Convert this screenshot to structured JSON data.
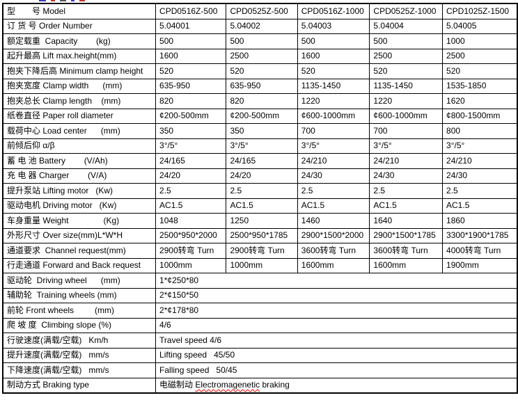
{
  "colors": {
    "border": "#000000",
    "text": "#000000",
    "spellcheck_underline": "#ff0000",
    "background": "#ffffff"
  },
  "table": {
    "rows": [
      {
        "label": "型　　号 Model",
        "values": [
          "CPD0516Z-500",
          "CPD0525Z-500",
          "CPD0516Z-1000",
          "CPD0525Z-1000",
          "CPD1025Z-1500"
        ]
      },
      {
        "label": "订 货 号 Order Number",
        "values": [
          "5.04001",
          "5.04002",
          "5.04003",
          "5.04004",
          "5.04005"
        ]
      },
      {
        "label": "额定载重  Capacity        (kg)",
        "values": [
          "500",
          "500",
          "500",
          "500",
          "1000"
        ]
      },
      {
        "label": "起升最高 Lift max.height(mm)",
        "values": [
          "1600",
          "2500",
          "1600",
          "2500",
          "2500"
        ]
      },
      {
        "label": "抱夹下降后高 Minimum clamp height",
        "values": [
          "520",
          "520",
          "520",
          "520",
          "520"
        ]
      },
      {
        "label": "抱夹宽度 Clamp width      (mm)",
        "values": [
          "635-950",
          "635-950",
          "1135-1450",
          "1135-1450",
          "1535-1850"
        ]
      },
      {
        "label": "抱夹总长 Clamp length    (mm)",
        "values": [
          "820",
          "820",
          "1220",
          "1220",
          "1620"
        ]
      },
      {
        "label": "纸卷直径 Paper roll diameter",
        "values": [
          "¢200-500mm",
          "¢200-500mm",
          "¢600-1000mm",
          "¢600-1000mm",
          "¢800-1500mm"
        ]
      },
      {
        "label": "载荷中心 Load center      (mm)",
        "values": [
          "350",
          "350",
          "700",
          "700",
          "800"
        ]
      },
      {
        "label": "前倾后仰 α/β",
        "values": [
          "3°/5°",
          "3°/5°",
          "3°/5°",
          "3°/5°",
          "3°/5°"
        ]
      },
      {
        "label": "蓄 电 池 Battery        (V/Ah)",
        "values": [
          "24/165",
          "24/165",
          "24/210",
          "24/210",
          "24/210"
        ]
      },
      {
        "label": "充 电 器 Charger        (V/A)",
        "values": [
          "24/20",
          "24/20",
          "24/30",
          "24/30",
          "24/30"
        ]
      },
      {
        "label": "提升泵站 Lifting motor   (Kw)",
        "values": [
          "2.5",
          "2.5",
          "2.5",
          "2.5",
          "2.5"
        ]
      },
      {
        "label": "驱动电机 Driving motor   (Kw)",
        "values": [
          "AC1.5",
          "AC1.5",
          "AC1.5",
          "AC1.5",
          "AC1.5"
        ]
      },
      {
        "label": "车身重量 Weight               (Kg)",
        "values": [
          "1048",
          "1250",
          "1460",
          "1640",
          "1860"
        ]
      },
      {
        "label": "外形尺寸 Over size(mm)L*W*H",
        "values": [
          "2500*950*2000",
          "2500*950*1785",
          "2900*1500*2000",
          "2900*1500*1785",
          "3300*1900*1785"
        ]
      },
      {
        "label": "通道要求  Channel request(mm)",
        "values": [
          "2900转弯 Turn",
          "2900转弯 Turn",
          "3600转弯 Turn",
          "3600转弯 Turn",
          "4000转弯 Turn"
        ]
      },
      {
        "label": "行走通道 Forward and Back request",
        "values": [
          "1000mm",
          "1000mm",
          "1600mm",
          "1600mm",
          "1900mm"
        ]
      },
      {
        "label": "驱动轮  Driving wheel      (mm)",
        "value": "1*¢250*80"
      },
      {
        "label": "辅助轮  Training wheels (mm)",
        "value": "2*¢150*50"
      },
      {
        "label": "前轮 Front wheels         (mm)",
        "value": "2*¢178*80"
      },
      {
        "label": "爬 坡 度  Climbing slope (%)",
        "value": "4/6"
      },
      {
        "label": "行驶速度(满载/空载)   Km/h",
        "value": "Travel speed 4/6"
      },
      {
        "label": "提升速度(满载/空载)   mm/s",
        "value": "Lifting speed   45/50"
      },
      {
        "label": "下降速度(满载/空载)   mm/s",
        "value": "Falling speed   50/45"
      },
      {
        "label": "制动方式 Braking type",
        "parts": [
          {
            "text": "电磁制动 "
          },
          {
            "text": "Electromagenetic",
            "spellcheck": true
          },
          {
            "text": " braking"
          }
        ]
      }
    ]
  }
}
